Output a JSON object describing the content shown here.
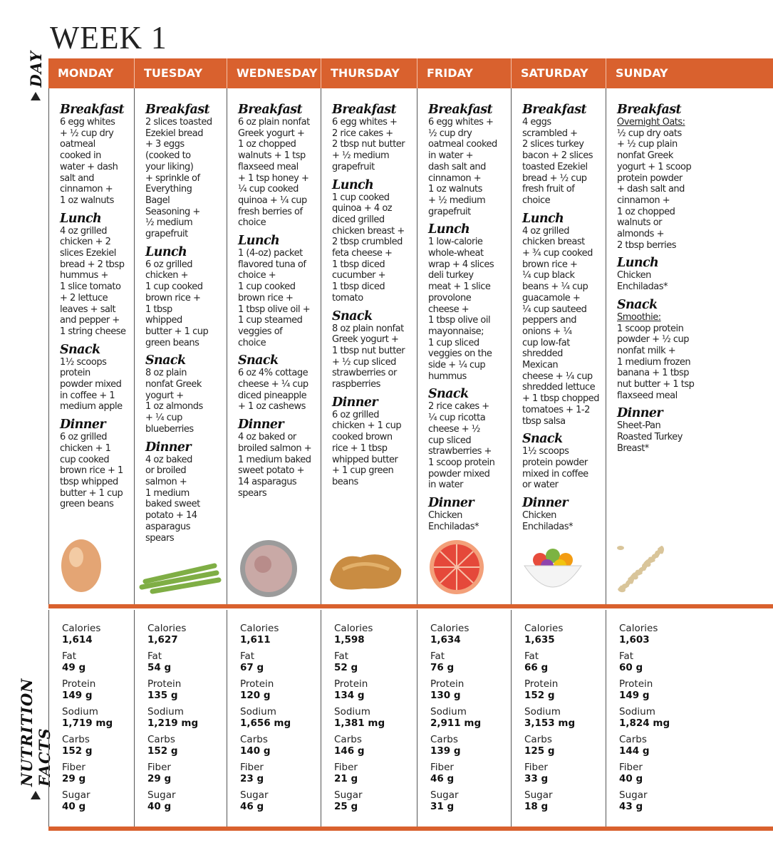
{
  "title": "WEEK 1",
  "side_labels": {
    "day": "DAY",
    "nutrition": "NUTRITION FACTS"
  },
  "colors": {
    "accent": "#d9612e"
  },
  "nutrition_labels": [
    "Calories",
    "Fat",
    "Protein",
    "Sodium",
    "Carbs",
    "Fiber",
    "Sugar"
  ],
  "days": [
    {
      "name": "MONDAY",
      "image": "egg",
      "meals": [
        {
          "title": "Breakfast",
          "lines": [
            "6 egg whites",
            "+ ½ cup dry",
            "oatmeal",
            "cooked in",
            "water + dash",
            "salt and",
            "cinnamon +",
            "1 oz walnuts"
          ]
        },
        {
          "title": "Lunch",
          "lines": [
            "4 oz grilled",
            "chicken + 2",
            "slices Ezekiel",
            "bread + 2 tbsp",
            "hummus +",
            "1 slice tomato",
            "+ 2 lettuce",
            "leaves + salt",
            "and pepper +",
            "1 string cheese"
          ]
        },
        {
          "title": "Snack",
          "lines": [
            "1½ scoops",
            "protein",
            "powder mixed",
            "in coffee + 1",
            "medium apple"
          ]
        },
        {
          "title": "Dinner",
          "lines": [
            "6 oz grilled",
            "chicken + 1",
            "cup cooked",
            "brown rice + 1",
            "tbsp whipped",
            "butter + 1 cup",
            "green beans"
          ]
        }
      ],
      "nutrition": [
        "1,614",
        "49 g",
        "149 g",
        "1,719 mg",
        "152 g",
        "29 g",
        "40 g"
      ]
    },
    {
      "name": "TUESDAY",
      "image": "asparagus",
      "meals": [
        {
          "title": "Breakfast",
          "lines": [
            "2 slices toasted",
            "Ezekiel bread",
            "+ 3 eggs",
            "(cooked to",
            "your liking)",
            "+ sprinkle of",
            "Everything",
            "Bagel",
            "Seasoning +",
            "½ medium",
            "grapefruit"
          ]
        },
        {
          "title": "Lunch",
          "lines": [
            "6 oz grilled",
            "chicken +",
            "1 cup cooked",
            "brown rice +",
            "1 tbsp",
            "whipped",
            "butter + 1 cup",
            "green beans"
          ]
        },
        {
          "title": "Snack",
          "lines": [
            "8 oz plain",
            "nonfat Greek",
            "yogurt +",
            "1 oz almonds",
            "+ ¼ cup",
            "blueberries"
          ]
        },
        {
          "title": "Dinner",
          "lines": [
            "4 oz baked",
            "or broiled",
            "salmon +",
            "1 medium",
            "baked sweet",
            "potato + 14",
            "asparagus",
            "spears"
          ]
        }
      ],
      "nutrition": [
        "1,627",
        "54 g",
        "135 g",
        "1,219 mg",
        "152 g",
        "29 g",
        "40 g"
      ]
    },
    {
      "name": "WEDNESDAY",
      "image": "tuna",
      "meals": [
        {
          "title": "Breakfast",
          "lines": [
            "6 oz plain nonfat",
            "Greek yogurt +",
            "1 oz chopped",
            "walnuts + 1 tsp",
            "flaxseed meal",
            "+ 1 tsp honey +",
            "¼ cup cooked",
            "quinoa + ¼ cup",
            "fresh berries of",
            "choice"
          ]
        },
        {
          "title": "Lunch",
          "lines": [
            "1 (4-oz) packet",
            "flavored tuna of",
            "choice +",
            "1 cup cooked",
            "brown rice +",
            "1 tbsp olive oil +",
            "1 cup steamed",
            "veggies of",
            "choice"
          ]
        },
        {
          "title": "Snack",
          "lines": [
            "6 oz 4% cottage",
            "cheese + ¼ cup",
            "diced pineapple",
            "+ 1 oz cashews"
          ]
        },
        {
          "title": "Dinner",
          "lines": [
            "4 oz baked or",
            "broiled salmon +",
            "1 medium baked",
            "sweet potato +",
            "14 asparagus",
            "spears"
          ]
        }
      ],
      "nutrition": [
        "1,611",
        "67 g",
        "120 g",
        "1,656 mg",
        "140 g",
        "23 g",
        "46 g"
      ]
    },
    {
      "name": "THURSDAY",
      "image": "peanut-butter",
      "meals": [
        {
          "title": "Breakfast",
          "lines": [
            "6 egg whites +",
            "2 rice cakes +",
            "2 tbsp nut butter",
            "+ ½ medium",
            "grapefruit"
          ]
        },
        {
          "title": "Lunch",
          "lines": [
            "1 cup cooked",
            "quinoa + 4 oz",
            "diced grilled",
            "chicken breast +",
            "2 tbsp crumbled",
            "feta cheese +",
            "1 tbsp diced",
            "cucumber +",
            "1 tbsp diced",
            "tomato"
          ]
        },
        {
          "title": "Snack",
          "lines": [
            "8 oz plain nonfat",
            "Greek yogurt +",
            "1 tbsp nut butter",
            "+ ½ cup sliced",
            "strawberries or",
            "raspberries"
          ]
        },
        {
          "title": "Dinner",
          "lines": [
            "6 oz grilled",
            "chicken + 1 cup",
            "cooked brown",
            "rice + 1 tbsp",
            "whipped butter",
            "+ 1 cup green",
            "beans"
          ]
        }
      ],
      "nutrition": [
        "1,598",
        "52 g",
        "134 g",
        "1,381 mg",
        "146 g",
        "21 g",
        "25 g"
      ]
    },
    {
      "name": "FRIDAY",
      "image": "grapefruit",
      "meals": [
        {
          "title": "Breakfast",
          "lines": [
            "6 egg whites +",
            "½ cup dry",
            "oatmeal cooked",
            "in water +",
            "dash salt and",
            "cinnamon +",
            "1 oz walnuts",
            "+ ½ medium",
            "grapefruit"
          ]
        },
        {
          "title": "Lunch",
          "lines": [
            "1 low-calorie",
            "whole-wheat",
            "wrap + 4 slices",
            "deli turkey",
            "meat + 1 slice",
            "provolone",
            "cheese +",
            "1 tbsp olive oil",
            "mayonnaise;",
            "1 cup sliced",
            "veggies on the",
            "side + ¼ cup",
            "hummus"
          ]
        },
        {
          "title": "Snack",
          "lines": [
            "2 rice cakes +",
            "¼ cup ricotta",
            "cheese + ½",
            "cup sliced",
            "strawberries +",
            "1 scoop protein",
            "powder mixed",
            "in water"
          ]
        },
        {
          "title": "Dinner",
          "lines": [
            "Chicken",
            "Enchiladas*"
          ]
        }
      ],
      "nutrition": [
        "1,634",
        "76 g",
        "130 g",
        "2,911 mg",
        "139 g",
        "46 g",
        "31 g"
      ]
    },
    {
      "name": "SATURDAY",
      "image": "fruit-bowl",
      "meals": [
        {
          "title": "Breakfast",
          "lines": [
            "4 eggs",
            "scrambled +",
            "2 slices turkey",
            "bacon + 2 slices",
            "toasted Ezekiel",
            "bread + ½ cup",
            "fresh fruit of",
            "choice"
          ]
        },
        {
          "title": "Lunch",
          "lines": [
            "4 oz grilled",
            "chicken breast",
            "+ ¾ cup cooked",
            "brown rice +",
            "¼ cup black",
            "beans + ¼ cup",
            "guacamole +",
            "¼ cup sauteed",
            "peppers and",
            "onions + ¼",
            "cup low-fat",
            "shredded",
            "Mexican",
            "cheese + ¼ cup",
            "shredded lettuce",
            "+ 1 tbsp chopped",
            "tomatoes + 1-2",
            "tbsp salsa"
          ]
        },
        {
          "title": "Snack",
          "lines": [
            "1½ scoops",
            "protein powder",
            "mixed in coffee",
            "or water"
          ]
        },
        {
          "title": "Dinner",
          "lines": [
            "Chicken",
            "Enchiladas*"
          ]
        }
      ],
      "nutrition": [
        "1,635",
        "66 g",
        "152 g",
        "3,153 mg",
        "125 g",
        "33 g",
        "18 g"
      ]
    },
    {
      "name": "SUNDAY",
      "image": "oats",
      "meals": [
        {
          "title": "Breakfast",
          "underline_first": true,
          "lines": [
            "Overnight Oats:",
            "½ cup dry oats",
            "+ ½ cup plain",
            "nonfat Greek",
            "yogurt + 1 scoop",
            "protein powder",
            "+ dash salt and",
            "cinnamon +",
            "1 oz chopped",
            "walnuts or",
            "almonds +",
            "2 tbsp berries"
          ]
        },
        {
          "title": "Lunch",
          "lines": [
            "Chicken",
            "Enchiladas*"
          ]
        },
        {
          "title": "Snack",
          "underline_first": true,
          "lines": [
            "Smoothie:",
            "1 scoop protein",
            "powder + ½ cup",
            "nonfat milk +",
            "1 medium frozen",
            "banana + 1 tbsp",
            "nut butter + 1 tsp",
            "flaxseed meal"
          ]
        },
        {
          "title": "Dinner",
          "lines": [
            "Sheet-Pan",
            "Roasted Turkey",
            "Breast*"
          ]
        }
      ],
      "nutrition": [
        "1,603",
        "60 g",
        "149 g",
        "1,824 mg",
        "144 g",
        "40 g",
        "43 g"
      ]
    }
  ]
}
